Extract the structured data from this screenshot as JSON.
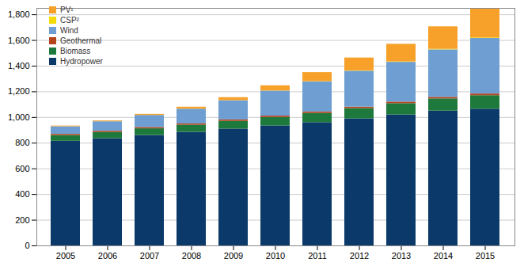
{
  "chart_data": {
    "type": "bar",
    "stacked": true,
    "grid": true,
    "legend": "top-left",
    "categories": [
      "2005",
      "2006",
      "2007",
      "2008",
      "2009",
      "2010",
      "2011",
      "2012",
      "2013",
      "2014",
      "2015"
    ],
    "series": [
      {
        "name": "Hydropower",
        "color": "#0b3a6a",
        "values": [
          815,
          835,
          860,
          885,
          910,
          935,
          960,
          990,
          1020,
          1050,
          1065
        ]
      },
      {
        "name": "Biomass",
        "color": "#1e7a3c",
        "values": [
          45,
          48,
          52,
          55,
          60,
          65,
          72,
          80,
          88,
          95,
          105
        ]
      },
      {
        "name": "Geothermal",
        "color": "#b5441c",
        "values": [
          9,
          10,
          10,
          10,
          11,
          11,
          11,
          11,
          12,
          12,
          13
        ]
      },
      {
        "name": "Wind",
        "color": "#6f9fd2",
        "values": [
          59,
          74,
          94,
          115,
          150,
          195,
          235,
          280,
          310,
          370,
          433
        ]
      },
      {
        "name": "CSP²",
        "color": "#f5d90a",
        "values": [
          0.4,
          0.4,
          0.4,
          0.5,
          0.7,
          1.3,
          1.8,
          2.6,
          3.6,
          4.4,
          4.8
        ]
      },
      {
        "name": "PV¹",
        "color": "#f7a02a",
        "values": [
          5,
          6,
          8,
          15,
          23,
          40,
          70,
          100,
          137,
          175,
          227
        ]
      }
    ],
    "ylim": [
      0,
      1850
    ],
    "yticks": [
      0,
      200,
      400,
      600,
      800,
      {
        "value": 1000,
        "label": "1,000"
      },
      {
        "value": 1200,
        "label": "1,200"
      },
      {
        "value": 1400,
        "label": "1,400"
      },
      {
        "value": 1600,
        "label": "1,600"
      },
      {
        "value": 1800,
        "label": "1,800"
      }
    ]
  }
}
